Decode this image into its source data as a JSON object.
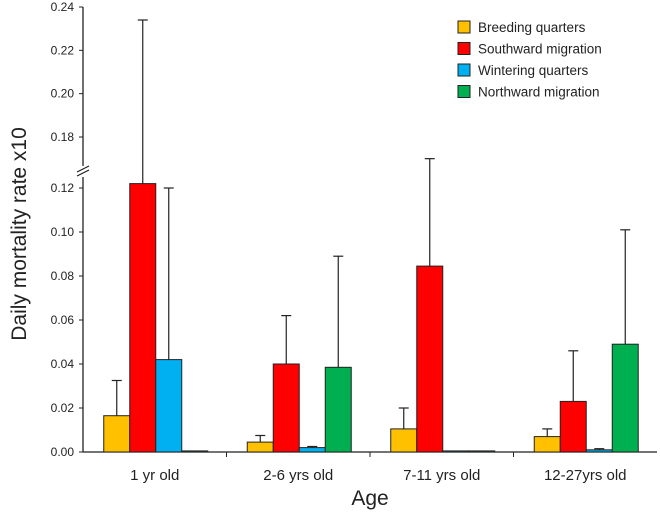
{
  "chart_data": {
    "type": "bar",
    "title": "",
    "xlabel": "Age",
    "ylabel": "Daily mortality rate  x10",
    "ylim": [
      0,
      0.24
    ],
    "axis_break": [
      0.125,
      0.17
    ],
    "yticks": [
      "0.00",
      "0.02",
      "0.04",
      "0.06",
      "0.08",
      "0.10",
      "0.12",
      "0.18",
      "0.20",
      "0.22",
      "0.24"
    ],
    "ytick_values": [
      0,
      0.02,
      0.04,
      0.06,
      0.08,
      0.1,
      0.12,
      0.18,
      0.2,
      0.22,
      0.24
    ],
    "categories": [
      "1 yr old",
      "2-6 yrs old",
      "7-11 yrs old",
      "12-27yrs old"
    ],
    "legend_position": "top-right",
    "series": [
      {
        "name": "Breeding quarters",
        "color": "#FFC000",
        "values": [
          0.0165,
          0.0045,
          0.0105,
          0.007
        ],
        "error_upper": [
          0.0325,
          0.0075,
          0.02,
          0.0105
        ]
      },
      {
        "name": "Southward migration",
        "color": "#FF0000",
        "values": [
          0.122,
          0.04,
          0.0845,
          0.023
        ],
        "error_upper": [
          0.234,
          0.062,
          0.17,
          0.046
        ]
      },
      {
        "name": "Wintering quarters",
        "color": "#00B0F0",
        "values": [
          0.042,
          0.002,
          0.0005,
          0.001
        ],
        "error_upper": [
          0.12,
          0.0025,
          null,
          0.0015
        ]
      },
      {
        "name": "Northward migration",
        "color": "#00B050",
        "values": [
          0.0005,
          0.0385,
          0.0005,
          0.049
        ],
        "error_upper": [
          null,
          0.089,
          null,
          0.101
        ]
      }
    ]
  }
}
